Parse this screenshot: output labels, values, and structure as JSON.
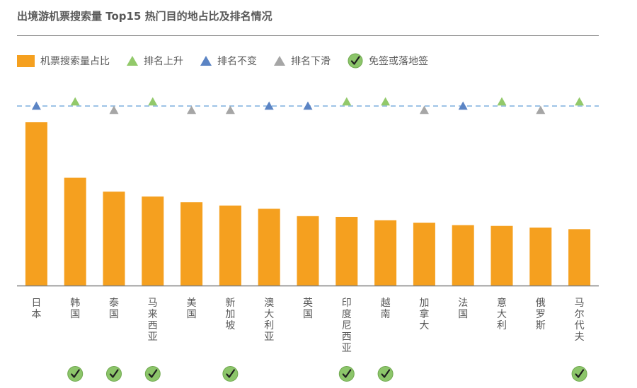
{
  "title": "出境游机票搜索量 Top15 热门目的地占比及排名情况",
  "legend": {
    "share": "机票搜索量占比",
    "up": "排名上升",
    "same": "排名不变",
    "down": "排名下滑",
    "visa": "免签或落地签"
  },
  "colors": {
    "bar": "#F5A01F",
    "up": "#92C96A",
    "same": "#5B84C4",
    "down": "#A6A6A6",
    "visa_fill": "#8CC56A",
    "visa_check": "#1F1F1F",
    "reference_line": "#9DC3E6",
    "axis": "#808080"
  },
  "icons": {
    "up": "triangle-up-icon",
    "same": "triangle-up-icon",
    "down": "triangle-up-icon",
    "visa": "check-circle-icon"
  },
  "chart_data": {
    "type": "bar",
    "title": "出境游机票搜索量 Top15 热门目的地占比及排名情况",
    "categories": [
      "日本",
      "韩国",
      "泰国",
      "马来西亚",
      "美国",
      "新加坡",
      "澳大利亚",
      "英国",
      "印度尼西亚",
      "越南",
      "加拿大",
      "法国",
      "意大利",
      "俄罗斯",
      "马尔代夫"
    ],
    "series": [
      {
        "name": "机票搜索量占比",
        "values": [
          100,
          66,
          57.5,
          54.5,
          51,
          49,
          47,
          42.5,
          42,
          40,
          38.5,
          37,
          36.5,
          35.5,
          34.5
        ]
      }
    ],
    "value_scale": "relative (share shown without numeric axis; 日本 = 100)",
    "ylim": [
      0,
      100
    ],
    "rank_change": [
      "same",
      "up",
      "down",
      "up",
      "down",
      "down",
      "same",
      "same",
      "up",
      "up",
      "down",
      "same",
      "up",
      "down",
      "up"
    ],
    "visa_free": [
      false,
      true,
      true,
      true,
      false,
      true,
      false,
      false,
      true,
      true,
      false,
      false,
      false,
      false,
      true
    ],
    "reference_line": "dashed",
    "grid": false,
    "legend_position": "top-left"
  }
}
